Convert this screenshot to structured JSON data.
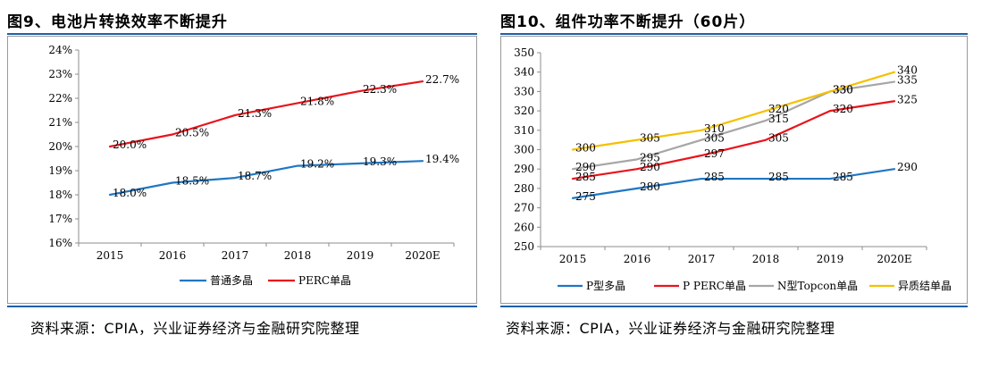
{
  "left": {
    "title": "图9、电池片转换效率不断提升",
    "source": "资料来源：CPIA，兴业证券经济与金融研究院整理"
  },
  "right": {
    "title": "图10、组件功率不断提升（60片）",
    "source": "资料来源：CPIA，兴业证券经济与金融研究院整理"
  },
  "chart_data": [
    {
      "type": "line",
      "categories": [
        "2015",
        "2016",
        "2017",
        "2018",
        "2019",
        "2020E"
      ],
      "ylim": [
        16,
        24
      ],
      "yticks": [
        "16%",
        "17%",
        "18%",
        "19%",
        "20%",
        "21%",
        "22%",
        "23%",
        "24%"
      ],
      "ytick_values": [
        16,
        17,
        18,
        19,
        20,
        21,
        22,
        23,
        24
      ],
      "legend_position": "bottom",
      "series": [
        {
          "name": "普通多晶",
          "color": "#1f77c4",
          "values": [
            18.0,
            18.5,
            18.7,
            19.2,
            19.3,
            19.4
          ],
          "labels": [
            "18.0%",
            "18.5%",
            "18.7%",
            "19.2%",
            "19.3%",
            "19.4%"
          ]
        },
        {
          "name": "PERC单晶",
          "color": "#e8141b",
          "values": [
            20.0,
            20.5,
            21.3,
            21.8,
            22.3,
            22.7
          ],
          "labels": [
            "20.0%",
            "20.5%",
            "21.3%",
            "21.8%",
            "22.3%",
            "22.7%"
          ]
        }
      ]
    },
    {
      "type": "line",
      "categories": [
        "2015",
        "2016",
        "2017",
        "2018",
        "2019",
        "2020E"
      ],
      "ylim": [
        250,
        350
      ],
      "yticks": [
        "250",
        "260",
        "270",
        "280",
        "290",
        "300",
        "310",
        "320",
        "330",
        "340",
        "350"
      ],
      "ytick_values": [
        250,
        260,
        270,
        280,
        290,
        300,
        310,
        320,
        330,
        340,
        350
      ],
      "legend_position": "bottom",
      "series": [
        {
          "name": "P型多晶",
          "color": "#1f77c4",
          "values": [
            275,
            280,
            285,
            285,
            285,
            290
          ],
          "labels": [
            "275",
            "280",
            "285",
            "285",
            "285",
            "290"
          ]
        },
        {
          "name": "P PERC单晶",
          "color": "#e8141b",
          "values": [
            285,
            290,
            297,
            305,
            320,
            325
          ],
          "labels": [
            "285",
            "290",
            "297",
            "305",
            "320",
            "325"
          ]
        },
        {
          "name": "N型Topcon单晶",
          "color": "#a6a6a6",
          "values": [
            290,
            295,
            305,
            315,
            330,
            335
          ],
          "labels": [
            "290",
            "295",
            "305",
            "315",
            "330",
            "335"
          ]
        },
        {
          "name": "异质结单晶",
          "color": "#f5c000",
          "values": [
            300,
            305,
            310,
            320,
            330,
            340
          ],
          "labels": [
            "300",
            "305",
            "310",
            "320",
            "330",
            "340"
          ]
        }
      ]
    }
  ]
}
